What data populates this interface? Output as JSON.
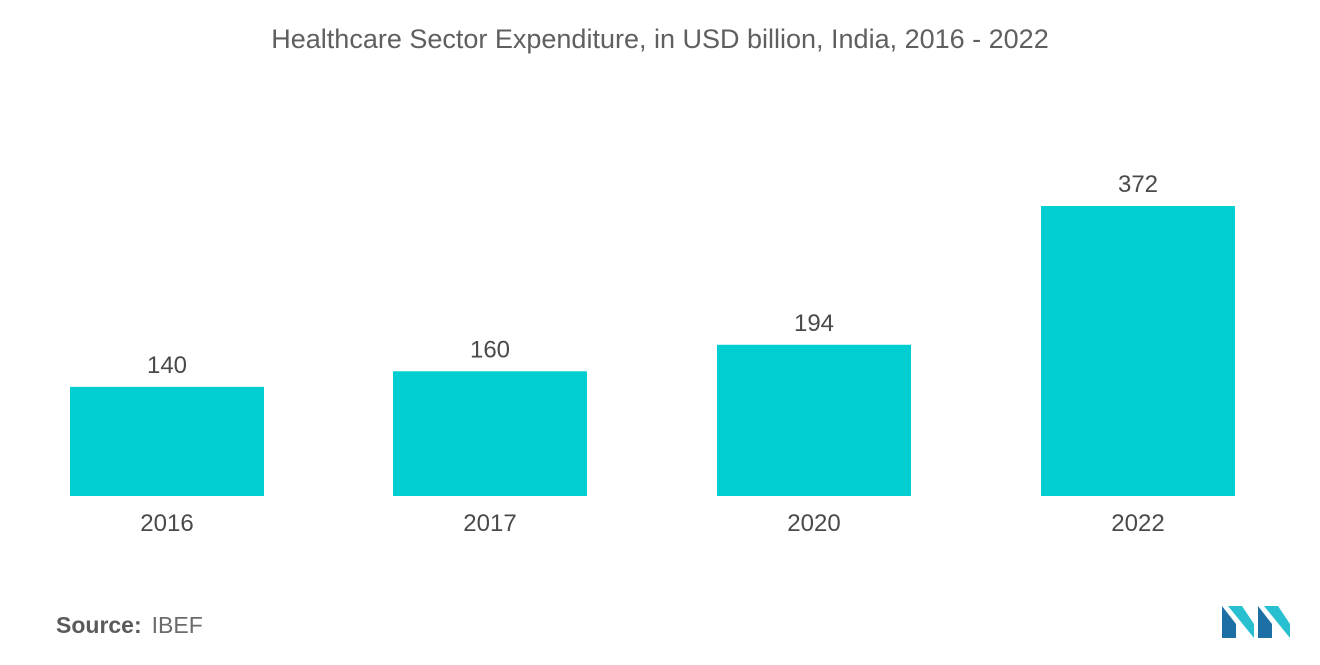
{
  "title": "Healthcare Sector Expenditure, in USD billion, India, 2016 - 2022",
  "source": {
    "label": "Source:",
    "value": "IBEF"
  },
  "logo": {
    "icon": "mordor-intelligence-logo-icon",
    "colors": [
      "#1d6fa5",
      "#28c0d0"
    ]
  },
  "chart_data": {
    "type": "bar",
    "title": "Healthcare Sector Expenditure, in USD billion, India, 2016 - 2022",
    "categories": [
      "2016",
      "2017",
      "2020",
      "2022"
    ],
    "values": [
      140,
      160,
      194,
      372
    ],
    "data_labels": [
      "140",
      "160",
      "194",
      "372"
    ],
    "xlabel": "",
    "ylabel": "",
    "ylim": [
      0,
      400
    ],
    "grid": false,
    "legend": "none",
    "bar_color": "#00ced1",
    "label_color": "#4a4a4a"
  }
}
